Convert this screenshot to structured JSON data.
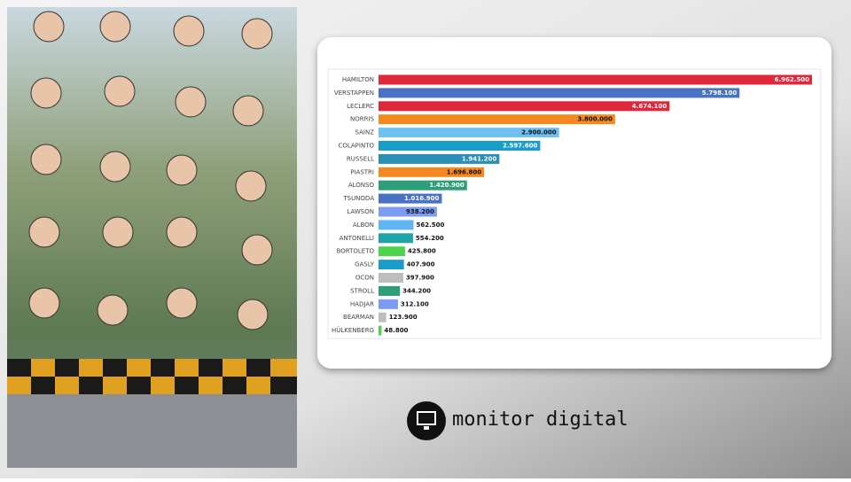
{
  "brand": "monitor digital",
  "chart_data": {
    "type": "hbar",
    "categories": [
      "HAMILTON",
      "VERSTAPPEN",
      "LECLERC",
      "NORRIS",
      "SAINZ",
      "COLAPINTO",
      "RUSSELL",
      "PIASTRI",
      "ALONSO",
      "TSUNODA",
      "LAWSON",
      "ALBON",
      "ANTONELLI",
      "BORTOLETO",
      "GASLY",
      "OCON",
      "STROLL",
      "HADJAR",
      "BEARMAN",
      "HÜLKENBERG"
    ],
    "values": [
      6962500,
      5798100,
      4674100,
      3800000,
      2900000,
      2597600,
      1941200,
      1696800,
      1420900,
      1016900,
      938200,
      562500,
      554200,
      425800,
      407900,
      397900,
      344200,
      312100,
      123900,
      48800
    ],
    "value_labels": [
      "6.962.500",
      "5.798.100",
      "4.674.100",
      "3.800.000",
      "2.900.000",
      "2.597.600",
      "1.941.200",
      "1.696.800",
      "1.420.900",
      "1.016.900",
      "938.200",
      "562.500",
      "554.200",
      "425.800",
      "407.900",
      "397.900",
      "344.200",
      "312.100",
      "123.900",
      "48.800"
    ],
    "colors": [
      "#e0283c",
      "#4a72c4",
      "#e0283c",
      "#f5891f",
      "#6ec1f0",
      "#1a9dc8",
      "#2a8fb5",
      "#f5891f",
      "#2e9e78",
      "#4a72c4",
      "#7b9cf0",
      "#5fb6f2",
      "#1fa3a3",
      "#4ed34e",
      "#1a9dc8",
      "#bdbdbd",
      "#2e9e78",
      "#7b9cf0",
      "#bdbdbd",
      "#4ed34e"
    ],
    "xlim": [
      0,
      6962500
    ]
  }
}
